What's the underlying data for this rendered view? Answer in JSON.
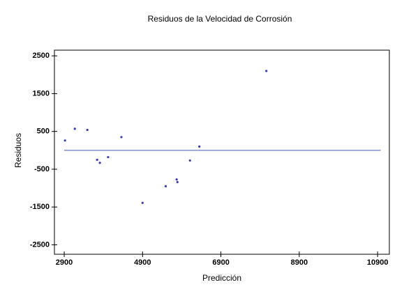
{
  "chart_data": {
    "type": "scatter",
    "title": "Residuos de la Velocidad de Corrosión",
    "x_label": "Predicción",
    "y_label": "Residuos",
    "x": [
      2920,
      3170,
      3490,
      3740,
      3810,
      4020,
      4360,
      4900,
      5490,
      5770,
      5790,
      6110,
      6350,
      8060
    ],
    "values": [
      260,
      570,
      540,
      -250,
      -330,
      -180,
      350,
      -1390,
      -950,
      -770,
      -840,
      -270,
      100,
      2100
    ],
    "color": "#3a3ab0",
    "reference_line": {
      "y": 0,
      "x": [
        2900,
        10980
      ],
      "color": "#7f8fd0"
    },
    "xlim": [
      2650,
      11200
    ],
    "xticks": [
      2900,
      4900,
      6900,
      8900,
      10900
    ],
    "ylim": [
      -2750,
      2650
    ],
    "yticks": [
      -2500,
      -1500,
      -500,
      500,
      1500,
      2500
    ]
  }
}
